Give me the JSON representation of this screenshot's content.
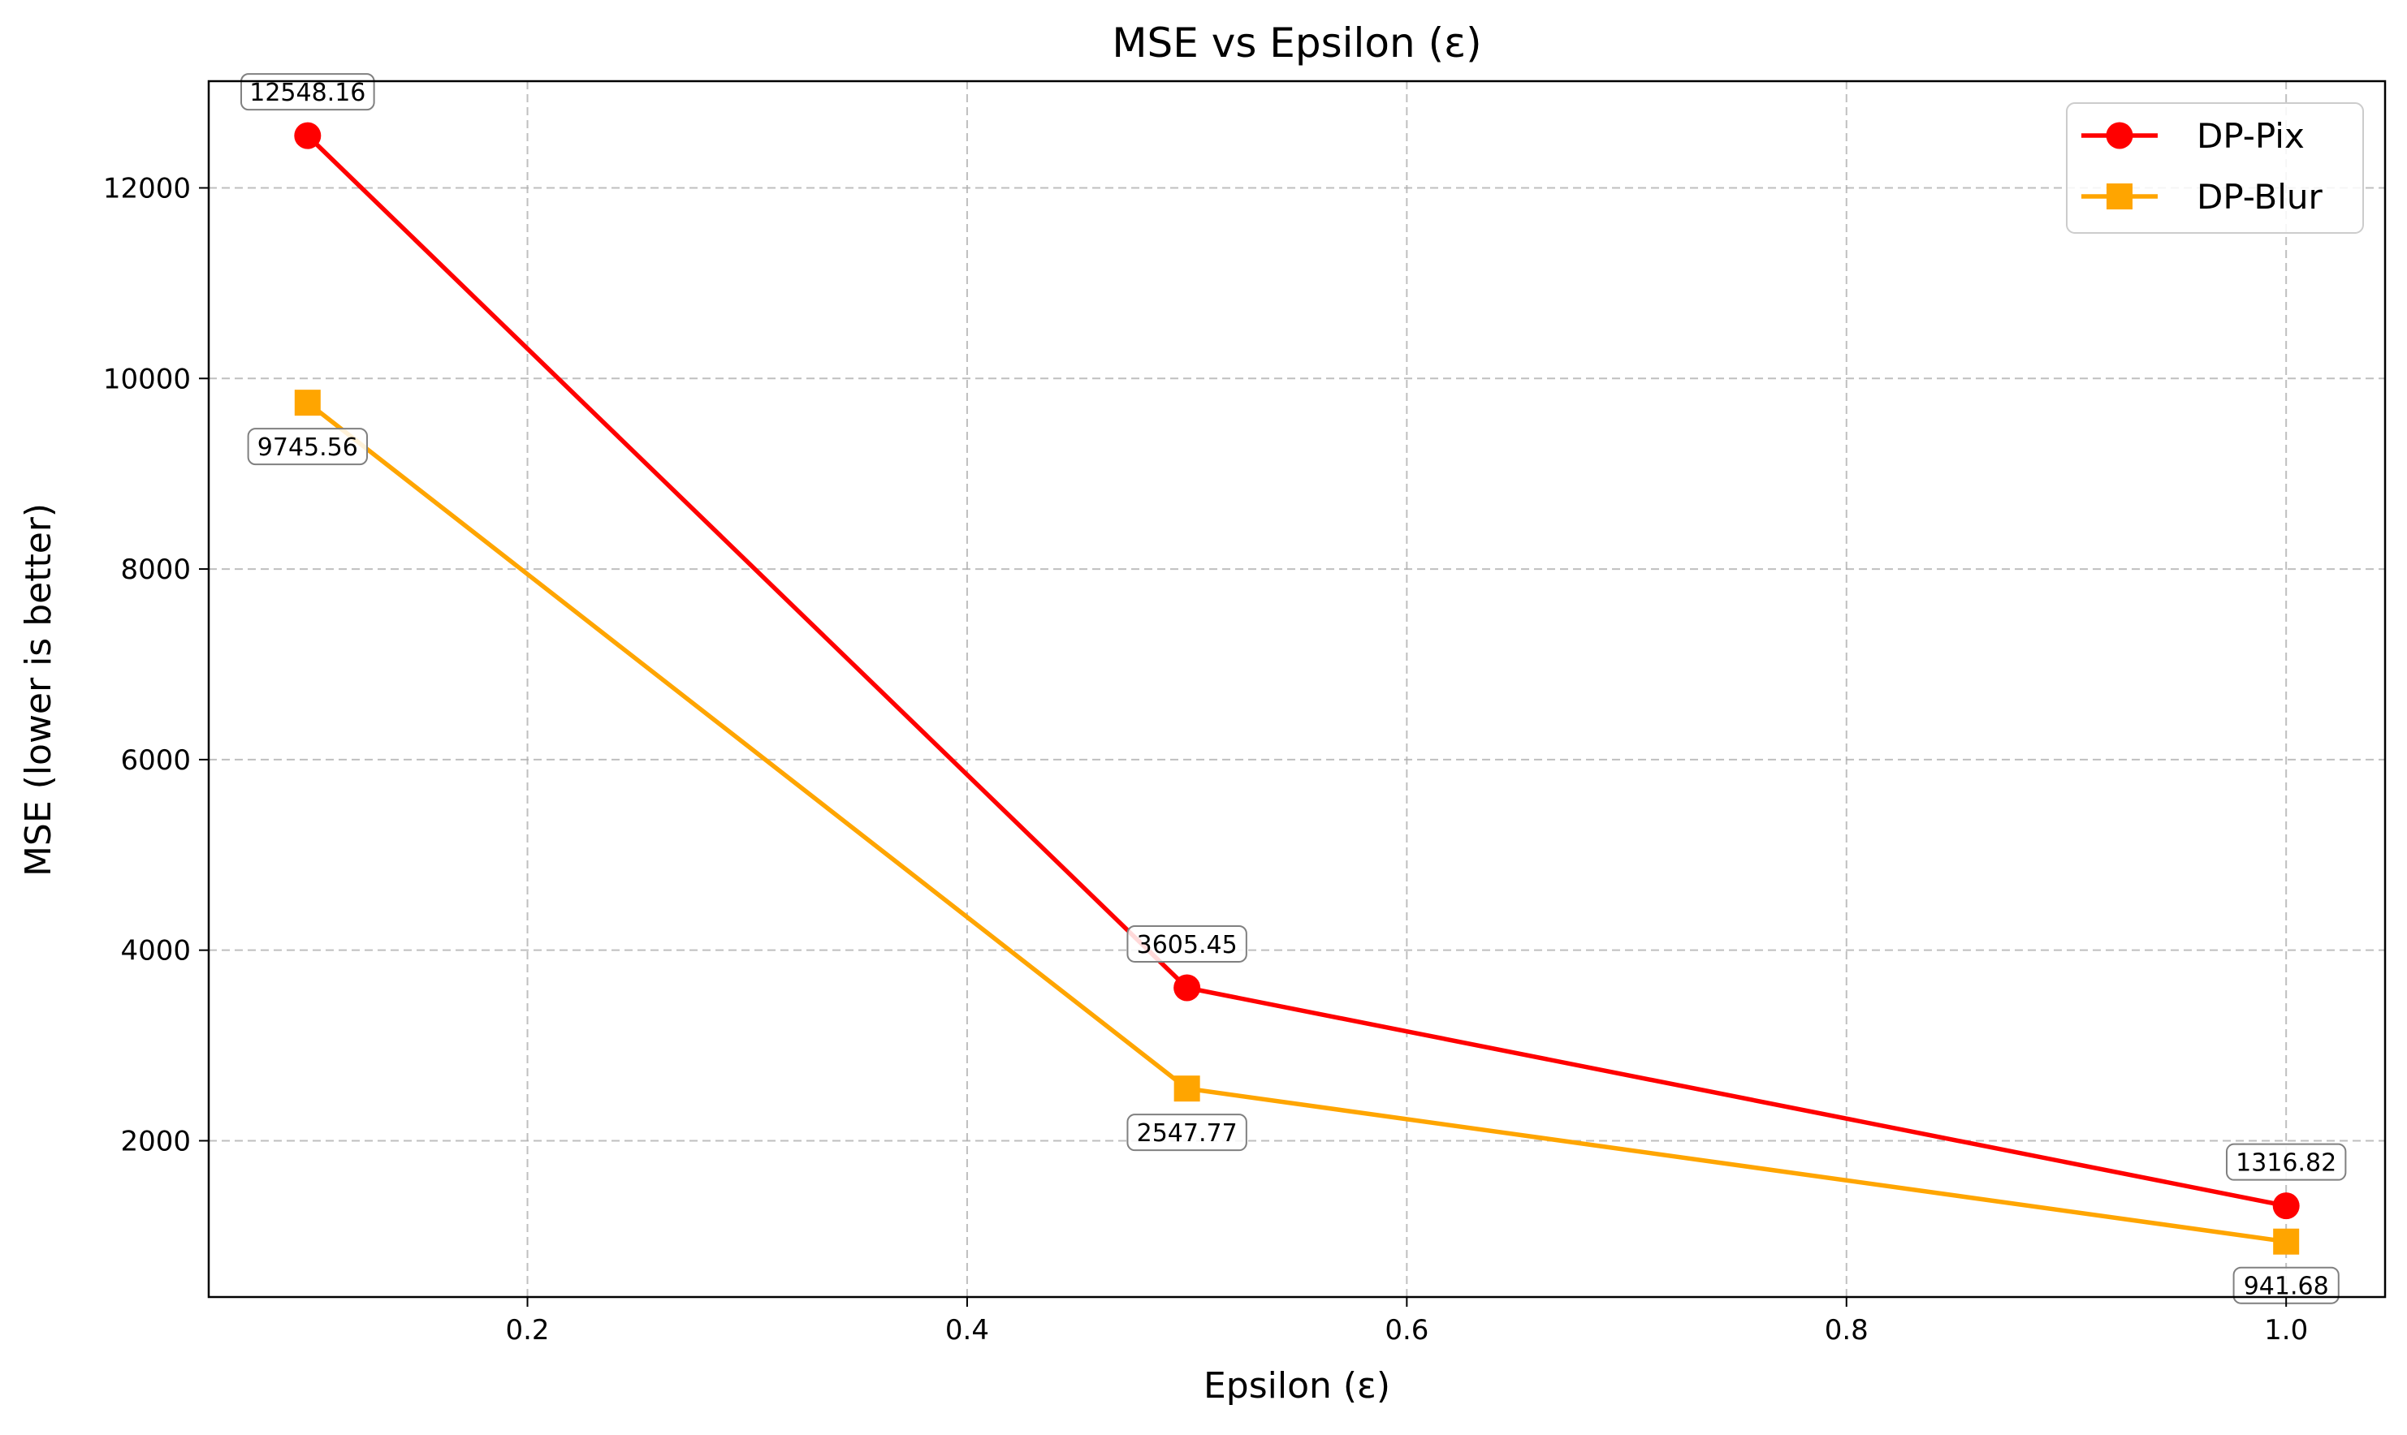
{
  "chart_data": {
    "type": "line",
    "title": "MSE vs Epsilon (ε)",
    "xlabel": "Epsilon (ε)",
    "ylabel": "MSE (lower is better)",
    "xlim": [
      0.055,
      1.045
    ],
    "ylim": [
      360,
      13120
    ],
    "xticks": [
      0.2,
      0.4,
      0.6,
      0.8,
      1.0
    ],
    "xtick_labels": [
      "0.2",
      "0.4",
      "0.6",
      "0.8",
      "1.0"
    ],
    "yticks": [
      2000,
      4000,
      6000,
      8000,
      10000,
      12000
    ],
    "ytick_labels": [
      "2000",
      "4000",
      "6000",
      "8000",
      "10000",
      "12000"
    ],
    "grid": true,
    "legend_position": "top-right",
    "x": [
      0.1,
      0.5,
      1.0
    ],
    "series": [
      {
        "name": "DP-Pix",
        "color": "#ff0000",
        "marker": "circle",
        "values": [
          12548.16,
          3605.45,
          1316.82
        ],
        "labels": [
          "12548.16",
          "3605.45",
          "1316.82"
        ],
        "label_position": "above"
      },
      {
        "name": "DP-Blur",
        "color": "#ffa500",
        "marker": "square",
        "values": [
          9745.56,
          2547.77,
          941.68
        ],
        "labels": [
          "9745.56",
          "2547.77",
          "941.68"
        ],
        "label_position": "below"
      }
    ]
  }
}
